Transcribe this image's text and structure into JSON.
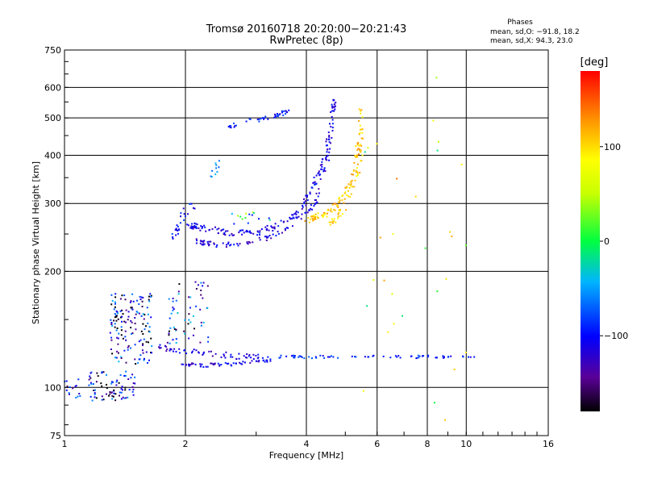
{
  "chart_data": {
    "type": "scatter",
    "title": "Tromsø 20160718 20:20:00−20:21:43",
    "subtitle": "RwPretec (8p)",
    "xlabel": "Frequency [MHz]",
    "ylabel": "Stationary phase Virtual Height [km]",
    "x_scale": "log",
    "y_scale": "log",
    "xlim": [
      1,
      16
    ],
    "ylim": [
      75,
      750
    ],
    "x_ticks": [
      1,
      2,
      4,
      6,
      8,
      10,
      16
    ],
    "x_tick_labels": [
      "1",
      "2",
      "4",
      "6",
      "8",
      "10",
      "16"
    ],
    "y_ticks": [
      75,
      100,
      200,
      300,
      400,
      500,
      600,
      750
    ],
    "y_tick_labels": [
      "75",
      "100",
      "200",
      "300",
      "400",
      "500",
      "600",
      "750"
    ],
    "grid": true,
    "phase_stats": {
      "heading": "Phases",
      "line_o": "mean, sd,O: −91.8, 18.2",
      "line_x": "mean, sd,X:  94.3, 23.0"
    },
    "colorbar": {
      "label": "[deg]",
      "range": [
        -180,
        180
      ],
      "ticks": [
        100,
        0,
        -100
      ],
      "tick_labels": [
        "100",
        "0",
        "−100"
      ]
    },
    "traces": [
      {
        "kind": "curve",
        "x": [
          2.0,
          2.3,
          2.6,
          3.0,
          3.4,
          3.8,
          4.1,
          4.4,
          4.6,
          4.7
        ],
        "y": [
          265,
          257,
          252,
          252,
          262,
          282,
          320,
          380,
          470,
          580
        ],
        "phase": -110,
        "count": 170,
        "jitter": 0.025
      },
      {
        "kind": "curve",
        "x": [
          2.1,
          2.4,
          2.8,
          3.2,
          3.7,
          4.2,
          4.5,
          4.7
        ],
        "y": [
          240,
          234,
          236,
          244,
          262,
          300,
          380,
          560
        ],
        "phase": -115,
        "count": 110,
        "jitter": 0.02
      },
      {
        "kind": "curve",
        "x": [
          1.85,
          1.95,
          2.1
        ],
        "y": [
          240,
          270,
          300
        ],
        "phase": -100,
        "count": 25,
        "jitter": 0.04
      },
      {
        "kind": "curve",
        "x": [
          4.0,
          4.4,
          4.8,
          5.2,
          5.4,
          5.5
        ],
        "y": [
          270,
          280,
          300,
          340,
          420,
          520
        ],
        "phase": 110,
        "count": 110,
        "jitter": 0.03
      },
      {
        "kind": "curve",
        "x": [
          4.6,
          5.0,
          5.4,
          5.5
        ],
        "y": [
          265,
          290,
          360,
          470
        ],
        "phase": 100,
        "count": 40,
        "jitter": 0.03
      },
      {
        "kind": "curve",
        "x": [
          2.5,
          2.9,
          3.3,
          3.6
        ],
        "y": [
          470,
          490,
          505,
          520
        ],
        "phase": -100,
        "count": 40,
        "jitter": 0.02
      },
      {
        "kind": "curve",
        "x": [
          2.3,
          2.45
        ],
        "y": [
          350,
          385
        ],
        "phase": -60,
        "count": 10,
        "jitter": 0.03
      },
      {
        "kind": "curve",
        "x": [
          1.95,
          2.2,
          2.6,
          3.0,
          3.3
        ],
        "y": [
          115,
          114,
          115,
          117,
          118
        ],
        "phase": -110,
        "count": 60,
        "jitter": 0.015
      },
      {
        "kind": "curve",
        "x": [
          1.7,
          2.0,
          2.4,
          2.8,
          3.2
        ],
        "y": [
          128,
          124,
          122,
          120,
          120
        ],
        "phase": -115,
        "count": 60,
        "jitter": 0.025
      },
      {
        "kind": "curve",
        "x": [
          3.3,
          4.0,
          5.0,
          6.0,
          7.5,
          9.0,
          10.5
        ],
        "y": [
          120,
          120,
          120,
          120,
          120,
          120,
          120
        ],
        "phase": -90,
        "count": 70,
        "jitter": 0.012
      },
      {
        "kind": "cloud",
        "xr": [
          1.3,
          1.65
        ],
        "yr": [
          115,
          175
        ],
        "phase": -120,
        "count": 150
      },
      {
        "kind": "cloud",
        "xr": [
          1.15,
          1.5
        ],
        "yr": [
          92,
          110
        ],
        "phase": -125,
        "count": 80
      },
      {
        "kind": "cloud",
        "xr": [
          1.0,
          1.1
        ],
        "yr": [
          93,
          106
        ],
        "phase": -110,
        "count": 15
      },
      {
        "kind": "cloud",
        "xr": [
          1.8,
          2.3
        ],
        "yr": [
          130,
          190
        ],
        "phase": -110,
        "count": 60
      },
      {
        "kind": "cloud",
        "xr": [
          5.5,
          10.0
        ],
        "yr": [
          78,
          650
        ],
        "phase": 60,
        "count": 30
      },
      {
        "kind": "cloud",
        "xr": [
          2.5,
          3.4
        ],
        "yr": [
          265,
          285
        ],
        "phase": -20,
        "count": 15
      }
    ]
  }
}
